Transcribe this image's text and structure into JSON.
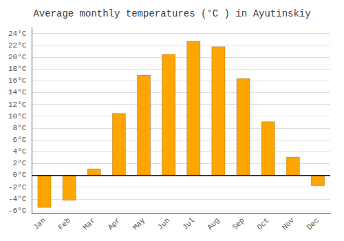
{
  "chart_data": {
    "type": "bar",
    "title": "Average monthly temperatures (°C ) in Ayutinskiy",
    "categories": [
      "Jan",
      "Feb",
      "Mar",
      "Apr",
      "May",
      "Jun",
      "Jul",
      "Aug",
      "Sep",
      "Oct",
      "Nov",
      "Dec"
    ],
    "values": [
      -5.5,
      -4.3,
      1.1,
      10.5,
      17.0,
      20.5,
      22.7,
      21.8,
      16.4,
      9.1,
      3.1,
      -1.8
    ],
    "color": "#FFA500",
    "ylim": [
      -6.5,
      25
    ],
    "yticks": [
      {
        "value": -6,
        "label": "-6°C"
      },
      {
        "value": -4,
        "label": "-4°C"
      },
      {
        "value": -2,
        "label": "-2°C"
      },
      {
        "value": 0,
        "label": "0°C"
      },
      {
        "value": 2,
        "label": "2°C"
      },
      {
        "value": 4,
        "label": "4°C"
      },
      {
        "value": 6,
        "label": "6°C"
      },
      {
        "value": 8,
        "label": "8°C"
      },
      {
        "value": 10,
        "label": "10°C"
      },
      {
        "value": 12,
        "label": "12°C"
      },
      {
        "value": 14,
        "label": "14°C"
      },
      {
        "value": 16,
        "label": "16°C"
      },
      {
        "value": 18,
        "label": "18°C"
      },
      {
        "value": 20,
        "label": "20°C"
      },
      {
        "value": 22,
        "label": "22°C"
      },
      {
        "value": 24,
        "label": "24°C"
      }
    ],
    "grid": true
  }
}
